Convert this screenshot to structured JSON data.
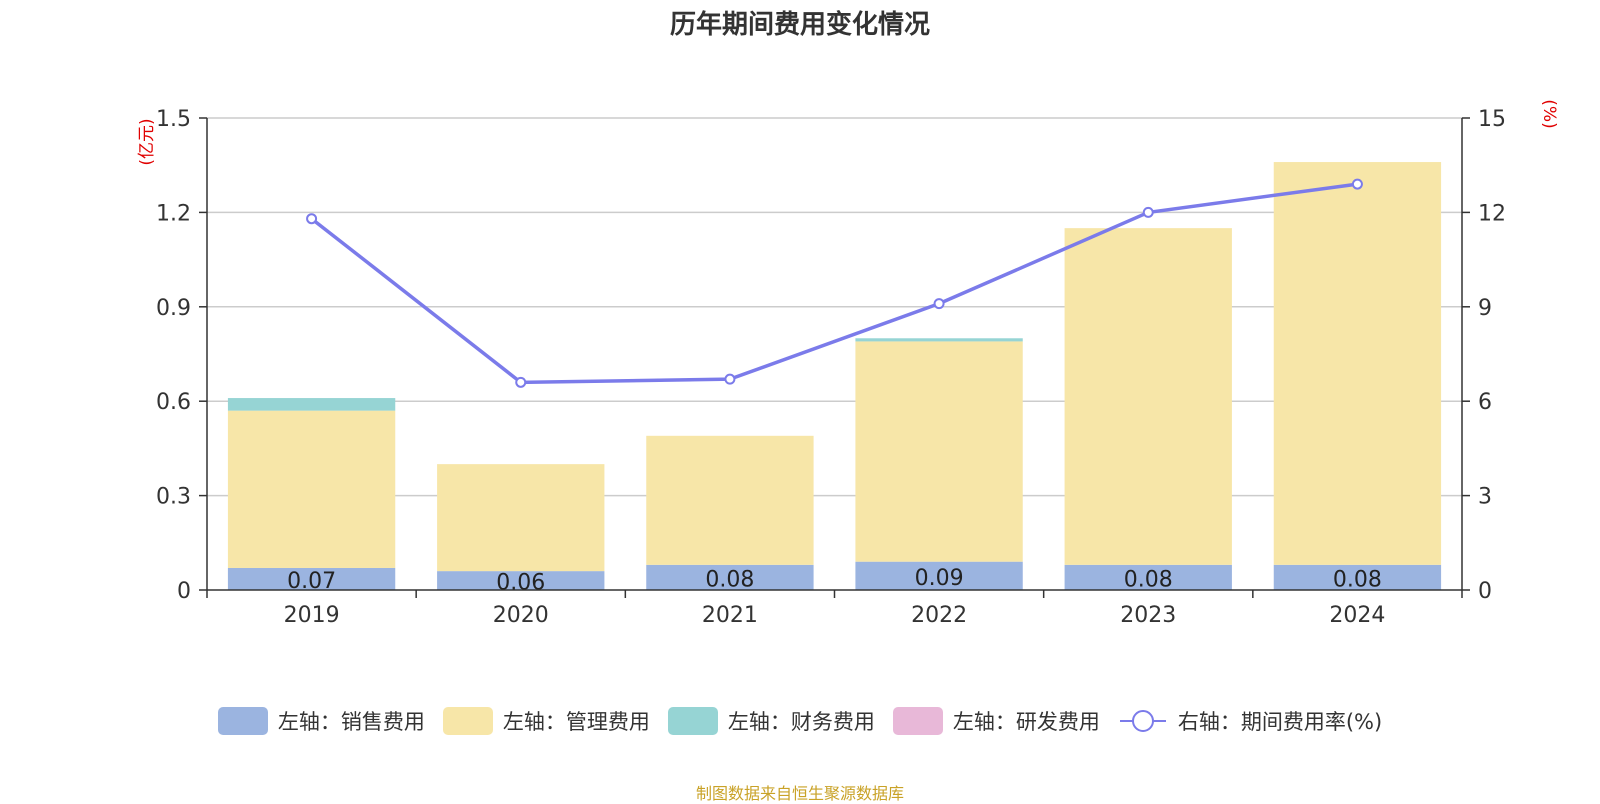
{
  "chart_data": {
    "type": "bar",
    "title": "历年期间费用变化情况",
    "categories": [
      "2019",
      "2020",
      "2021",
      "2022",
      "2023",
      "2024"
    ],
    "series": [
      {
        "name": "左轴：销售费用",
        "axis": "left",
        "values": [
          0.07,
          0.06,
          0.08,
          0.09,
          0.08,
          0.08
        ],
        "color": "#9bb4e0",
        "labels": [
          "0.07",
          "0.06",
          "0.08",
          "0.09",
          "0.08",
          "0.08"
        ]
      },
      {
        "name": "左轴：管理费用",
        "axis": "left",
        "values": [
          0.5,
          0.34,
          0.41,
          0.7,
          1.07,
          1.28
        ],
        "color": "#f7e6a8"
      },
      {
        "name": "左轴：财务费用",
        "axis": "left",
        "values": [
          0.04,
          0.0,
          0.0,
          0.01,
          0.0,
          0.0
        ],
        "color": "#96d4d4"
      },
      {
        "name": "左轴：研发费用",
        "axis": "left",
        "values": [
          0,
          0,
          0,
          0,
          0,
          0
        ],
        "color": "#e8b8d8"
      },
      {
        "name": "右轴：期间费用率(%)",
        "axis": "right",
        "type": "line",
        "values": [
          11.8,
          6.6,
          6.7,
          9.1,
          12.0,
          12.9
        ],
        "color": "#7b7bea"
      }
    ],
    "left_axis": {
      "label": "(亿元)",
      "ylim": [
        0,
        1.5
      ],
      "ticks": [
        "0",
        "0.3",
        "0.6",
        "0.9",
        "1.2",
        "1.5"
      ]
    },
    "right_axis": {
      "label": "(%)",
      "ylim": [
        0,
        15
      ],
      "ticks": [
        "0",
        "3",
        "6",
        "9",
        "12",
        "15"
      ]
    },
    "grid": true,
    "legend": "bottom"
  },
  "source_note": "制图数据来自恒生聚源数据库"
}
